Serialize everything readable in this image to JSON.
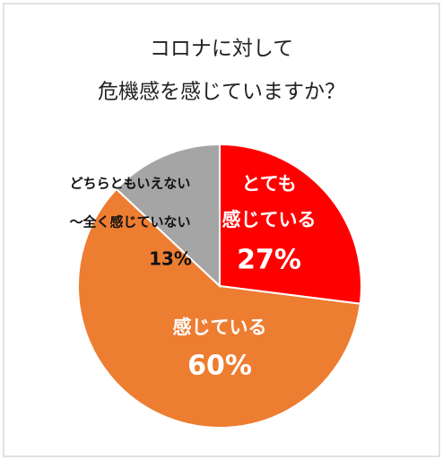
{
  "chart_data": {
    "type": "pie",
    "title": [
      "コロナに対して",
      "危機感を感じていますか？"
    ],
    "categories": [
      [
        "とても",
        "感じている"
      ],
      [
        "感じている"
      ],
      [
        "どちらともいえない",
        "～全く感じていない"
      ]
    ],
    "values": [
      27,
      60,
      13
    ],
    "value_labels": [
      "27%",
      "60%",
      "13%"
    ],
    "colors": [
      "#ff0000",
      "#ed7d31",
      "#a5a5a5"
    ]
  }
}
